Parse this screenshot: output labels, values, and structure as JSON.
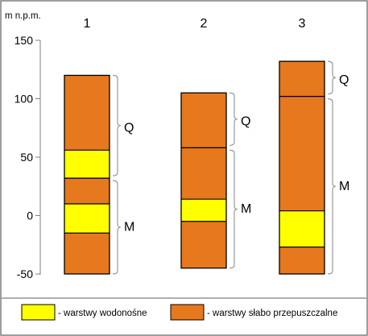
{
  "axis": {
    "label": "m n.p.m.",
    "ticks": [
      150,
      100,
      50,
      0,
      -50
    ],
    "range": [
      -50,
      150
    ]
  },
  "columns": [
    {
      "number": "1",
      "bottom": -50,
      "top": 120,
      "layers": [
        {
          "from": -50,
          "to": -15,
          "type": "slabo"
        },
        {
          "from": -15,
          "to": 10,
          "type": "wodonosne"
        },
        {
          "from": 10,
          "to": 32,
          "type": "slabo"
        },
        {
          "from": 32,
          "to": 56,
          "type": "wodonosne"
        },
        {
          "from": 56,
          "to": 120,
          "type": "slabo"
        }
      ],
      "boundary": 32,
      "brace_labels": {
        "upper": "Q",
        "lower": "M"
      }
    },
    {
      "number": "2",
      "bottom": -45,
      "top": 105,
      "layers": [
        {
          "from": -45,
          "to": -5,
          "type": "slabo"
        },
        {
          "from": -5,
          "to": 14,
          "type": "wodonosne"
        },
        {
          "from": 14,
          "to": 105,
          "type": "slabo"
        }
      ],
      "boundary": 58,
      "brace_labels": {
        "upper": "Q",
        "lower": "M"
      }
    },
    {
      "number": "3",
      "bottom": -50,
      "top": 132,
      "layers": [
        {
          "from": -50,
          "to": -27,
          "type": "slabo"
        },
        {
          "from": -27,
          "to": 4,
          "type": "wodonosne"
        },
        {
          "from": 4,
          "to": 132,
          "type": "slabo"
        }
      ],
      "boundary": 102,
      "brace_labels": {
        "upper": "Q",
        "lower": "M"
      }
    }
  ],
  "legend": [
    {
      "type": "wodonosne",
      "label": "- warstwy wodonośne",
      "color": "#ffff00"
    },
    {
      "type": "slabo",
      "label": "- warstwy słabo przepuszczalne",
      "color": "#e6781e"
    }
  ],
  "colors": {
    "slabo": "#e6781e",
    "wodonosne": "#ffff00",
    "outline": "#000000",
    "brace": "#9a9a9a",
    "frame": "#7f7f7f"
  }
}
